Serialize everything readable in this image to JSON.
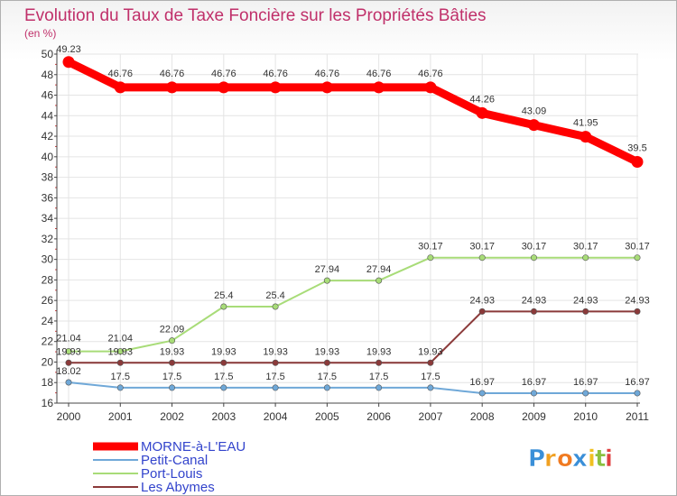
{
  "chart_data": {
    "type": "line",
    "title": "Evolution du Taux de Taxe Foncière sur les Propriétés Bâties",
    "unit_label": "(en %)",
    "x": [
      "2000",
      "2001",
      "2002",
      "2003",
      "2004",
      "2005",
      "2006",
      "2007",
      "2008",
      "2009",
      "2010",
      "2011"
    ],
    "ylim": [
      16,
      50
    ],
    "yticks": [
      16,
      18,
      20,
      22,
      24,
      26,
      28,
      30,
      32,
      34,
      36,
      38,
      40,
      42,
      44,
      46,
      48,
      50
    ],
    "grid": true,
    "legend_position": "bottom-left",
    "series": [
      {
        "name": "MORNE-à-L'EAU",
        "color": "#ff0000",
        "label_color": "#3344cc",
        "values": [
          49.23,
          46.76,
          46.76,
          46.76,
          46.76,
          46.76,
          46.76,
          46.76,
          44.26,
          43.09,
          41.95,
          39.5
        ],
        "labels": [
          "49.23",
          "46.76",
          "46.76",
          "46.76",
          "46.76",
          "46.76",
          "46.76",
          "46.76",
          "44.26",
          "43.09",
          "41.95",
          "39.5"
        ]
      },
      {
        "name": "Petit-Canal",
        "color": "#6fa8d8",
        "label_color": "#3344cc",
        "values": [
          18.02,
          17.5,
          17.5,
          17.5,
          17.5,
          17.5,
          17.5,
          17.5,
          16.97,
          16.97,
          16.97,
          16.97
        ],
        "labels": [
          "18.02",
          "17.5",
          "17.5",
          "17.5",
          "17.5",
          "17.5",
          "17.5",
          "17.5",
          "16.97",
          "16.97",
          "16.97",
          "16.97"
        ]
      },
      {
        "name": "Port-Louis",
        "color": "#a8dc78",
        "label_color": "#3344cc",
        "values": [
          21.04,
          21.04,
          22.09,
          25.4,
          25.4,
          27.94,
          27.94,
          30.17,
          30.17,
          30.17,
          30.17,
          30.17
        ],
        "labels": [
          "21.04",
          "21.04",
          "22.09",
          "25.4",
          "25.4",
          "27.94",
          "27.94",
          "30.17",
          "30.17",
          "30.17",
          "30.17",
          "30.17"
        ]
      },
      {
        "name": "Les Abymes",
        "color": "#8b3a3a",
        "label_color": "#3344cc",
        "values": [
          19.93,
          19.93,
          19.93,
          19.93,
          19.93,
          19.93,
          19.93,
          19.93,
          24.93,
          24.93,
          24.93,
          24.93
        ],
        "labels": [
          "19.93",
          "19.93",
          "19.93",
          "19.93",
          "19.93",
          "19.93",
          "19.93",
          "19.93",
          "24.93",
          "24.93",
          "24.93",
          "24.93"
        ]
      }
    ]
  },
  "brand": {
    "name": "Proxiti",
    "letters": [
      "P",
      "r",
      "o",
      "x",
      "i",
      "t",
      "i"
    ],
    "letter_colors": [
      "#3a8fd8",
      "#f0a020",
      "#f07a20",
      "#3a8fd8",
      "#f0c020",
      "#8ac040",
      "#e04040"
    ]
  }
}
